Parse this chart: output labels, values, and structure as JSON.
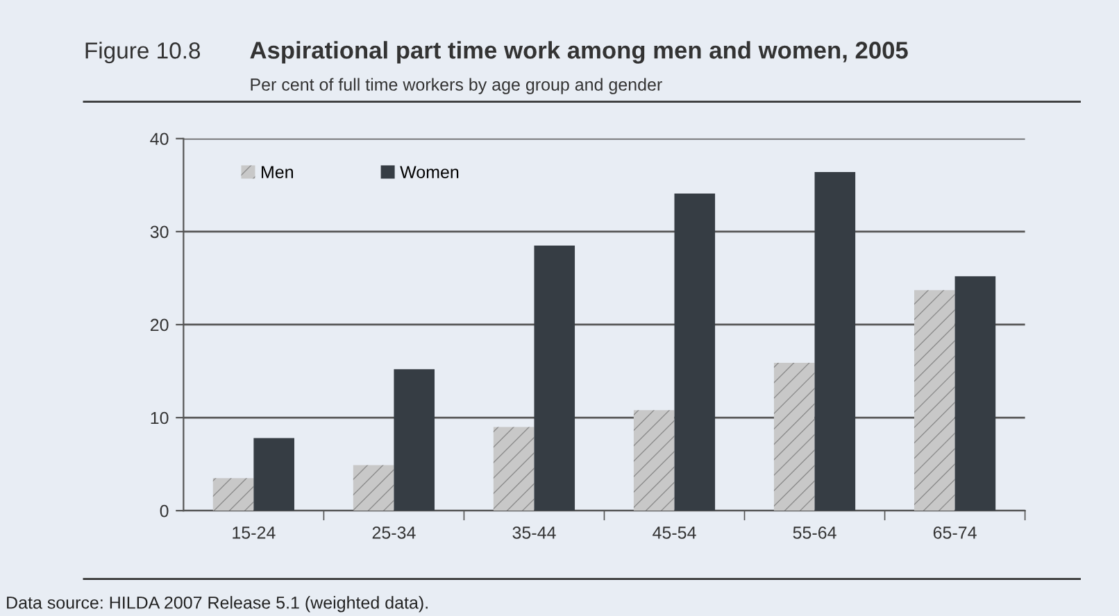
{
  "chart_data": {
    "type": "bar",
    "title": "Aspirational part time work among men and women, 2005",
    "subtitle": "Per cent of full time workers by age group and gender",
    "categories": [
      "15-24",
      "25-34",
      "35-44",
      "45-54",
      "55-64",
      "65-74"
    ],
    "series": [
      {
        "name": "Men",
        "color": "#c8c8c8",
        "values": [
          3.5,
          4.9,
          9.0,
          10.8,
          15.9,
          23.7
        ]
      },
      {
        "name": "Women",
        "color": "#363d44",
        "values": [
          7.8,
          15.2,
          28.5,
          34.1,
          36.4,
          25.2
        ]
      }
    ],
    "ylim": [
      0,
      40
    ],
    "yticks": [
      0,
      10,
      20,
      30,
      40
    ],
    "grid": "y",
    "legend": "top left",
    "annotations": [
      "Figure 10.8",
      "Data source: HILDA 2007 Release 5.1 (weighted data)."
    ]
  }
}
